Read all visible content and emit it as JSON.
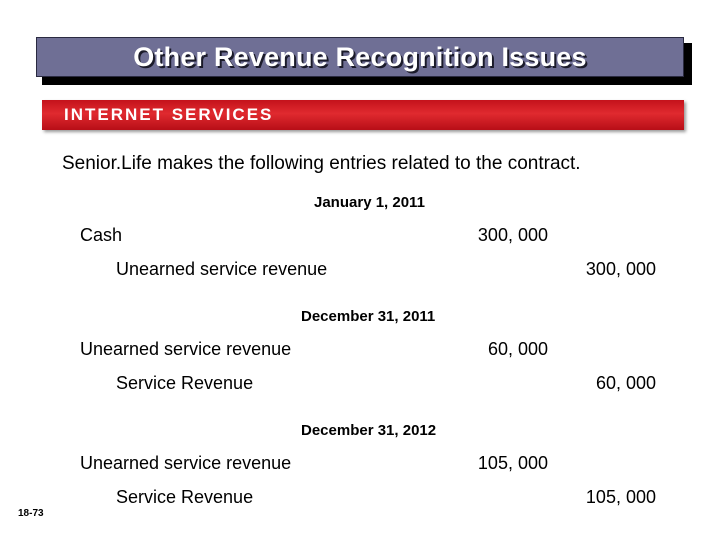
{
  "title": "Other Revenue Recognition Issues",
  "section_label": "INTERNET SERVICES",
  "intro": "Senior.Life makes the following entries related to the contract.",
  "entries": [
    {
      "date": "January 1, 2011",
      "debit_account": "Cash",
      "debit_amount": "300, 000",
      "credit_account": "Unearned service revenue",
      "credit_amount": "300, 000"
    },
    {
      "date": "December 31, 2011",
      "debit_account": "Unearned service revenue",
      "debit_amount": "60, 000",
      "credit_account": "Service Revenue",
      "credit_amount": "60, 000"
    },
    {
      "date": "December 31, 2012",
      "debit_account": "Unearned service revenue",
      "debit_amount": "105, 000",
      "credit_account": "Service Revenue",
      "credit_amount": "105, 000"
    }
  ],
  "slide_number": "18-73",
  "colors": {
    "title_bg": "#6f6f95",
    "band_red": "#d01c23"
  }
}
